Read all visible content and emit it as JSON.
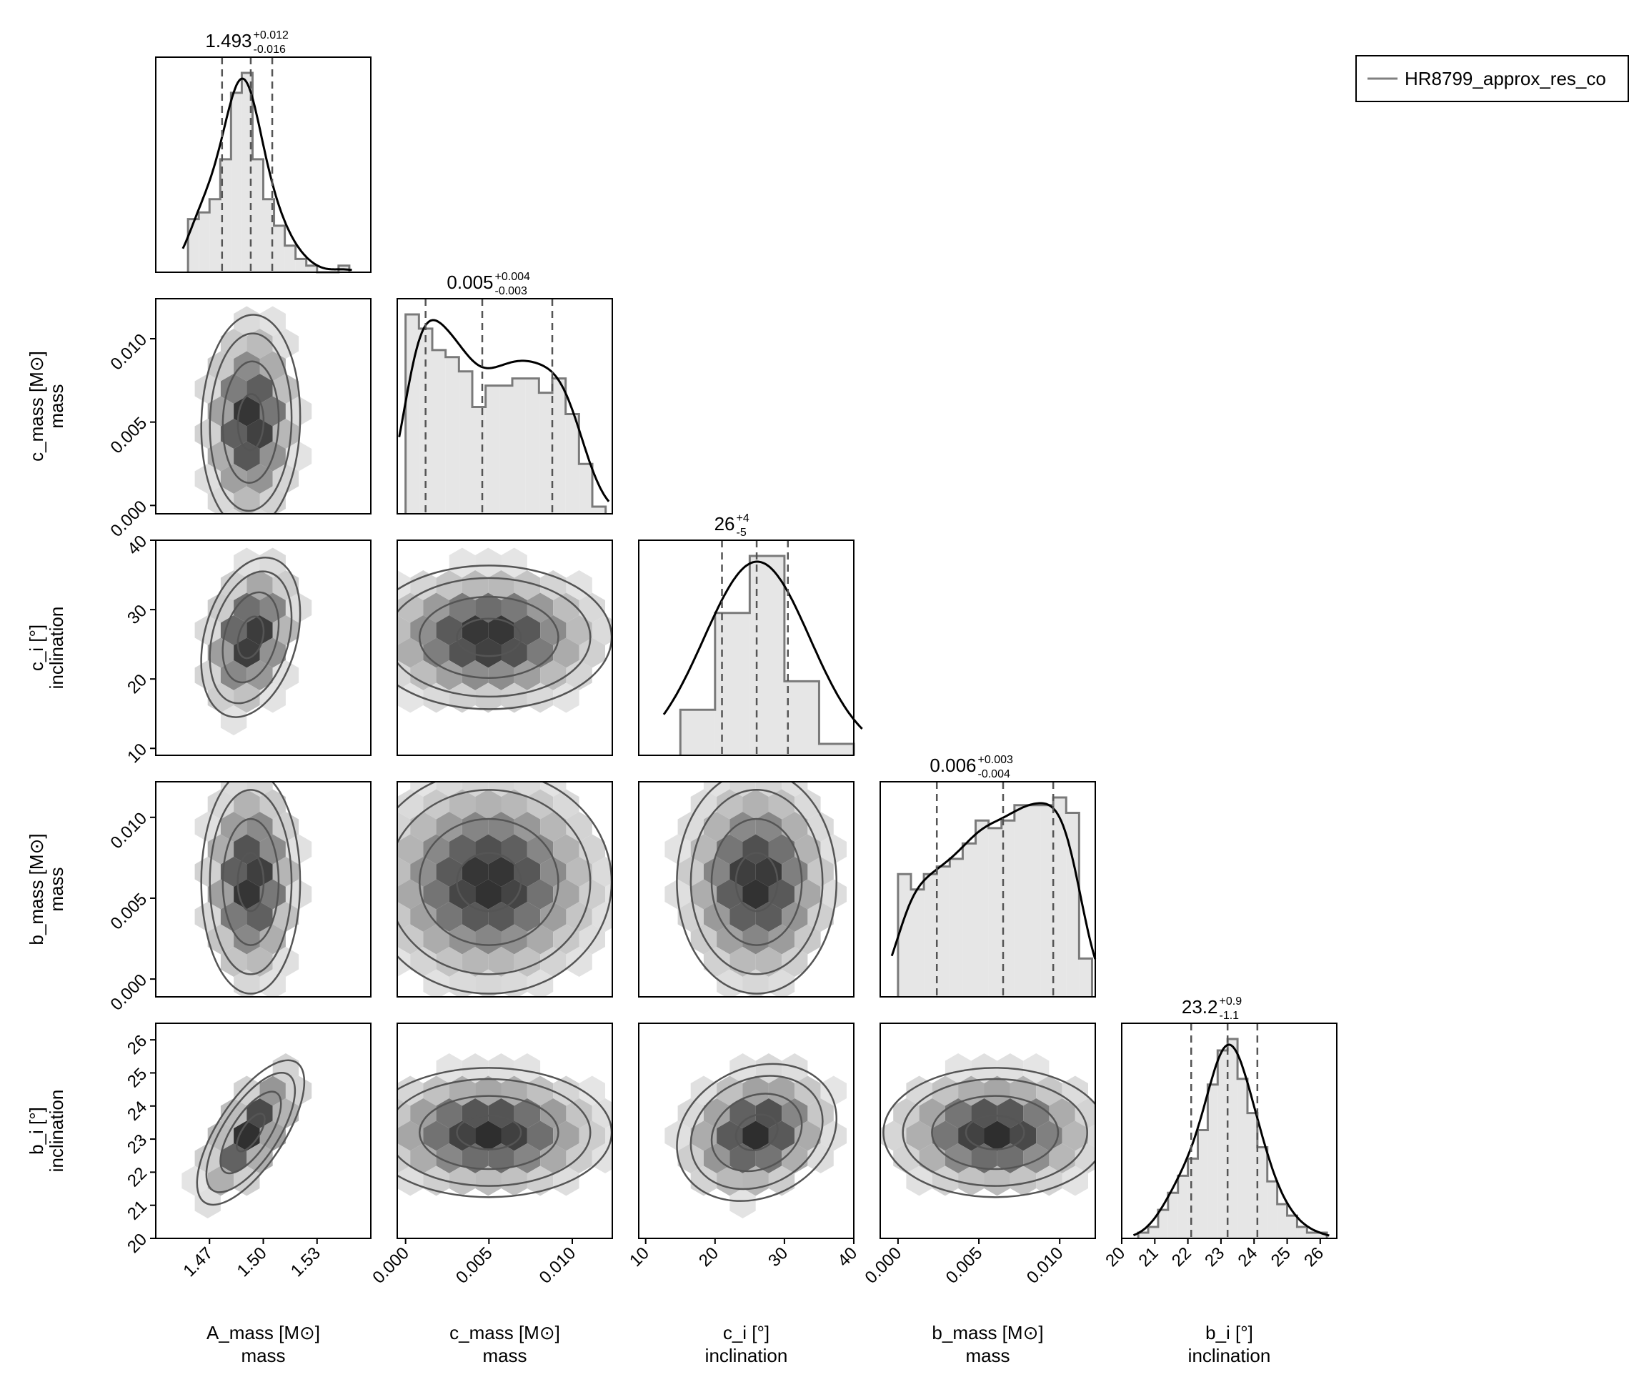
{
  "legend": {
    "label": "HR8799_approx_res_co",
    "color": "#808080"
  },
  "chart_data": {
    "type": "corner",
    "parameters": [
      {
        "name": "A_mass [M⊙]",
        "group": "mass",
        "range": [
          1.44,
          1.56
        ],
        "ticks": [
          1.47,
          1.5,
          1.53
        ],
        "tick_labels": [
          "1.47",
          "1.50",
          "1.53"
        ],
        "title": {
          "median": "1.493",
          "plus": "+0.012",
          "minus": "-0.016"
        },
        "quantiles": [
          1.477,
          1.493,
          1.505
        ],
        "hist": {
          "edges": [
            1.458,
            1.464,
            1.47,
            1.476,
            1.482,
            1.488,
            1.494,
            1.5,
            1.506,
            1.512,
            1.518,
            1.524,
            1.53,
            1.536,
            1.542,
            1.548
          ],
          "counts": [
            8,
            9,
            11,
            17,
            27,
            30,
            17,
            11,
            7,
            4,
            2,
            1,
            0,
            0,
            1
          ]
        }
      },
      {
        "name": "c_mass [M⊙]",
        "group": "mass",
        "range": [
          -0.0005,
          0.0124
        ],
        "ticks": [
          0.0,
          0.005,
          0.01
        ],
        "tick_labels": [
          "0.000",
          "0.005",
          "0.010"
        ],
        "title": {
          "median": "0.005",
          "plus": "+0.004",
          "minus": "-0.003"
        },
        "quantiles": [
          0.0012,
          0.0046,
          0.0088
        ],
        "hist": {
          "edges": [
            0.0,
            0.0008,
            0.0016,
            0.0024,
            0.0032,
            0.004,
            0.0048,
            0.0056,
            0.0064,
            0.0072,
            0.008,
            0.0088,
            0.0096,
            0.0104,
            0.0112,
            0.012
          ],
          "counts": [
            28,
            26,
            23,
            22,
            20,
            15,
            18,
            18,
            19,
            19,
            17,
            19,
            14,
            7,
            1
          ]
        }
      },
      {
        "name": "c_i [°]",
        "group": "inclination",
        "range": [
          9,
          40
        ],
        "ticks": [
          10,
          20,
          30,
          40
        ],
        "tick_labels": [
          "10",
          "20",
          "30",
          "40"
        ],
        "title": {
          "median": "26",
          "plus": "+4",
          "minus": "-5"
        },
        "quantiles": [
          21,
          26,
          30.5
        ],
        "hist": {
          "edges": [
            15,
            20,
            25,
            30,
            35,
            40
          ],
          "counts": [
            8,
            25,
            35,
            13,
            2
          ]
        }
      },
      {
        "name": "b_mass [M⊙]",
        "group": "mass",
        "range": [
          -0.0011,
          0.0122
        ],
        "ticks": [
          0.0,
          0.005,
          0.01
        ],
        "tick_labels": [
          "0.000",
          "0.005",
          "0.010"
        ],
        "title": {
          "median": "0.006",
          "plus": "+0.003",
          "minus": "-0.004"
        },
        "quantiles": [
          0.0024,
          0.0065,
          0.0096
        ],
        "hist": {
          "edges": [
            0.0,
            0.0008,
            0.0016,
            0.0024,
            0.0032,
            0.004,
            0.0048,
            0.0056,
            0.0064,
            0.0072,
            0.008,
            0.0088,
            0.0096,
            0.0104,
            0.0112,
            0.012
          ],
          "counts": [
            16,
            14,
            16,
            17,
            18,
            20,
            23,
            22,
            23,
            25,
            25,
            25,
            26,
            24,
            5
          ]
        }
      },
      {
        "name": "b_i [°]",
        "group": "inclination",
        "range": [
          20,
          26.5
        ],
        "ticks": [
          20,
          21,
          22,
          23,
          24,
          25,
          26
        ],
        "tick_labels": [
          "20",
          "21",
          "22",
          "23",
          "24",
          "25",
          "26"
        ],
        "title": {
          "median": "23.2",
          "plus": "+0.9",
          "minus": "-1.1"
        },
        "quantiles": [
          22.1,
          23.2,
          24.1
        ],
        "hist": {
          "edges": [
            20.5,
            20.8,
            21.1,
            21.4,
            21.7,
            22.0,
            22.3,
            22.6,
            22.9,
            23.2,
            23.5,
            23.8,
            24.1,
            24.4,
            24.7,
            25.0,
            25.3,
            25.6,
            25.9,
            26.2
          ],
          "counts": [
            1,
            2,
            5,
            8,
            11,
            14,
            19,
            27,
            33,
            35,
            28,
            22,
            16,
            10,
            6,
            4,
            2,
            1,
            1
          ]
        }
      }
    ],
    "pairs": [
      {
        "x": 0,
        "y": 1,
        "mean": [
          1.493,
          0.005
        ],
        "sd": [
          0.012,
          0.0028
        ],
        "corr": 0.05
      },
      {
        "x": 0,
        "y": 2,
        "mean": [
          1.493,
          26
        ],
        "sd": [
          0.012,
          5
        ],
        "corr": 0.3
      },
      {
        "x": 1,
        "y": 2,
        "mean": [
          0.005,
          26
        ],
        "sd": [
          0.0032,
          4.5
        ],
        "corr": 0.0
      },
      {
        "x": 0,
        "y": 3,
        "mean": [
          1.493,
          0.006
        ],
        "sd": [
          0.012,
          0.003
        ],
        "corr": 0.0
      },
      {
        "x": 1,
        "y": 3,
        "mean": [
          0.005,
          0.006
        ],
        "sd": [
          0.0032,
          0.003
        ],
        "corr": 0.0
      },
      {
        "x": 2,
        "y": 3,
        "mean": [
          26,
          0.006
        ],
        "sd": [
          5,
          0.003
        ],
        "corr": 0.0
      },
      {
        "x": 0,
        "y": 4,
        "mean": [
          1.493,
          23.2
        ],
        "sd": [
          0.013,
          0.95
        ],
        "corr": 0.7
      },
      {
        "x": 1,
        "y": 4,
        "mean": [
          0.005,
          23.2
        ],
        "sd": [
          0.0032,
          0.85
        ],
        "corr": 0.0
      },
      {
        "x": 2,
        "y": 4,
        "mean": [
          26,
          23.2
        ],
        "sd": [
          5,
          0.9
        ],
        "corr": 0.2
      },
      {
        "x": 3,
        "y": 4,
        "mean": [
          0.006,
          23.2
        ],
        "sd": [
          0.003,
          0.85
        ],
        "corr": 0.0
      }
    ]
  }
}
